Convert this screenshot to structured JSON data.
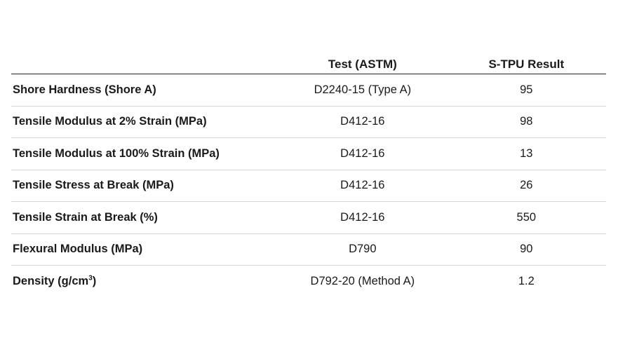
{
  "table": {
    "headers": [
      "",
      "Test (ASTM)",
      "S-TPU Result"
    ],
    "rows": [
      {
        "property": "Shore Hardness (Shore A)",
        "test": "D2240-15 (Type A)",
        "result": "95"
      },
      {
        "property": "Tensile Modulus at 2% Strain (MPa)",
        "test": "D412-16",
        "result": "98"
      },
      {
        "property": "Tensile Modulus at 100% Strain (MPa)",
        "test": "D412-16",
        "result": "13"
      },
      {
        "property": "Tensile Stress at Break (MPa)",
        "test": "D412-16",
        "result": "26"
      },
      {
        "property": "Tensile Strain at Break (%)",
        "test": "D412-16",
        "result": "550"
      },
      {
        "property": "Flexural Modulus (MPa)",
        "test": "D790",
        "result": "90"
      },
      {
        "property": "Density (g/cm",
        "property_superscript": "3",
        "property_suffix": ")",
        "test": "D792-20 (Method A)",
        "result": "1.2"
      }
    ]
  }
}
